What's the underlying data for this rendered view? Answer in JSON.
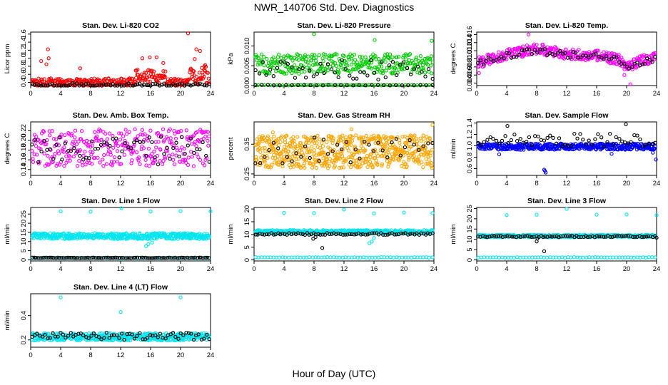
{
  "page": {
    "title": "NWR_140706  Std. Dev. Diagnostics",
    "x_axis_title": "Hour of Day (UTC)"
  },
  "colors": {
    "black": "#000000",
    "red": "#ff0000",
    "green": "#00cc00",
    "magenta": "#ff00ff",
    "orange": "#ffa500",
    "blue": "#0000ff",
    "cyan": "#00e5ee"
  },
  "chart_data": [
    {
      "type": "scatter",
      "title": "Stan. Dev. Li-820 CO2",
      "ylabel": "Licor ppm",
      "xlim": [
        0,
        24
      ],
      "ylim": [
        0.32,
        1.65
      ],
      "xticks": [
        "0",
        "4",
        "8",
        "12",
        "16",
        "20",
        "24"
      ],
      "yticks": [
        "0.4",
        "0.6",
        "0.8",
        "1.0",
        "1.2",
        "1.4",
        "1.6"
      ],
      "series": [
        {
          "color": "red",
          "pattern": "band",
          "n": 340,
          "base": 0.4,
          "spread": 0.1,
          "bumps": [
            [
              14,
              18,
              0.25
            ],
            [
              21,
              23.7,
              0.35
            ]
          ],
          "extra": [
            [
              2.1,
              0.85
            ],
            [
              2.4,
              1.0
            ],
            [
              2.3,
              1.22
            ],
            [
              1.4,
              0.93
            ],
            [
              6.6,
              0.75
            ],
            [
              14.9,
              1.0
            ],
            [
              15.9,
              1.02
            ],
            [
              16.8,
              1.02
            ],
            [
              17.7,
              0.88
            ],
            [
              21.0,
              1.62
            ],
            [
              21.9,
              0.98
            ],
            [
              22.1,
              1.22
            ],
            [
              22.6,
              1.18
            ],
            [
              23.2,
              0.8
            ]
          ]
        },
        {
          "color": "black",
          "pattern": "band",
          "n": 80,
          "base": 0.335,
          "spread": 0.05
        }
      ]
    },
    {
      "type": "scatter",
      "title": "Stan. Dev. Li-820 Pressure",
      "ylabel": "kPa",
      "xlim": [
        0,
        24
      ],
      "ylim": [
        0,
        0.0135
      ],
      "xticks": [
        "0",
        "4",
        "8",
        "12",
        "16",
        "20",
        "24"
      ],
      "yticks": [
        "0.000",
        "0.005",
        "0.010"
      ],
      "series": [
        {
          "color": "green",
          "pattern": "band",
          "n": 330,
          "base": 0.0055,
          "spread": 0.0025,
          "extra": [
            [
              8.0,
              0.013
            ],
            [
              16.1,
              0.0115
            ],
            [
              23.7,
              0.0113
            ]
          ]
        },
        {
          "color": "green",
          "pattern": "line",
          "n": 60,
          "value": 0.0001
        },
        {
          "color": "black",
          "pattern": "band",
          "n": 50,
          "base": 0.004,
          "spread": 0.0025
        },
        {
          "color": "black",
          "pattern": "line",
          "n": 30,
          "value": 0.0001
        }
      ]
    },
    {
      "type": "scatter",
      "title": "Stan. Dev. Li-820 Temp.",
      "ylabel": "degrees C",
      "xlim": [
        0,
        24
      ],
      "ylim": [
        0.0034,
        0.0166
      ],
      "xticks": [
        "0",
        "4",
        "8",
        "12",
        "16",
        "20",
        "24"
      ],
      "yticks": [
        "0.004",
        "0.006",
        "0.008",
        "0.010",
        "0.012",
        "0.014",
        "0.016"
      ],
      "series": [
        {
          "color": "magenta",
          "pattern": "curve",
          "n": 380,
          "spread": 0.0013,
          "curve": [
            [
              0,
              0.009
            ],
            [
              4,
              0.011
            ],
            [
              8,
              0.0125
            ],
            [
              12,
              0.0112
            ],
            [
              16,
              0.0108
            ],
            [
              19,
              0.0098
            ],
            [
              20,
              0.008
            ],
            [
              22,
              0.0095
            ],
            [
              24,
              0.0105
            ]
          ],
          "extra": [
            [
              0.3,
              0.0065
            ],
            [
              0.8,
              0.008
            ],
            [
              19.7,
              0.006
            ],
            [
              20.5,
              0.0037
            ],
            [
              6.9,
              0.016
            ]
          ]
        },
        {
          "color": "black",
          "pattern": "curve",
          "n": 70,
          "spread": 0.0008,
          "curve": [
            [
              0,
              0.009
            ],
            [
              4,
              0.0108
            ],
            [
              8,
              0.012
            ],
            [
              12,
              0.011
            ],
            [
              16,
              0.0105
            ],
            [
              19,
              0.0096
            ],
            [
              20,
              0.0082
            ],
            [
              22,
              0.009
            ],
            [
              24,
              0.01
            ]
          ]
        }
      ]
    },
    {
      "type": "scatter",
      "title": "Stan. Dev. Amb. Box Temp.",
      "ylabel": "degrees C",
      "xlim": [
        0,
        24
      ],
      "ylim": [
        0.128,
        0.238
      ],
      "xticks": [
        "0",
        "4",
        "8",
        "12",
        "16",
        "20",
        "24"
      ],
      "yticks": [
        "0.14",
        "0.16",
        "0.18",
        "0.20",
        "0.22"
      ],
      "series": [
        {
          "color": "magenta",
          "pattern": "band",
          "n": 330,
          "base": 0.185,
          "spread": 0.038
        },
        {
          "color": "black",
          "pattern": "band",
          "n": 60,
          "base": 0.178,
          "spread": 0.03
        }
      ]
    },
    {
      "type": "scatter",
      "title": "Stan. Dev. Gas Stream RH",
      "ylabel": "percent",
      "xlim": [
        0,
        24
      ],
      "ylim": [
        0.245,
        0.425
      ],
      "xticks": [
        "0",
        "4",
        "8",
        "12",
        "16",
        "20",
        "24"
      ],
      "yticks": [
        "0.25",
        "0.35"
      ],
      "series": [
        {
          "color": "orange",
          "pattern": "band",
          "n": 600,
          "base": 0.325,
          "spread": 0.055,
          "extra": [
            [
              23.8,
              0.415
            ],
            [
              2.5,
              0.39
            ],
            [
              13.0,
              0.4
            ]
          ]
        },
        {
          "color": "black",
          "pattern": "band",
          "n": 40,
          "base": 0.33,
          "spread": 0.045
        }
      ]
    },
    {
      "type": "scatter",
      "title": "Stan. Dev. Sample Flow",
      "ylabel": "ml/min",
      "xlim": [
        0,
        24
      ],
      "ylim": [
        0.48,
        1.42
      ],
      "xticks": [
        "0",
        "4",
        "8",
        "12",
        "16",
        "20",
        "24"
      ],
      "yticks": [
        "0.6",
        "0.8",
        "1.0",
        "1.2",
        "1.4"
      ],
      "series": [
        {
          "color": "blue",
          "pattern": "band",
          "n": 420,
          "base": 0.985,
          "spread": 0.055,
          "extra": [
            [
              9.0,
              0.58
            ],
            [
              9.2,
              0.53
            ],
            [
              9.1,
              0.56
            ],
            [
              3.0,
              0.85
            ],
            [
              18.0,
              0.86
            ],
            [
              23.9,
              0.76
            ],
            [
              23.5,
              0.88
            ]
          ]
        },
        {
          "color": "black",
          "pattern": "band",
          "n": 60,
          "base": 1.1,
          "spread": 0.12,
          "extra": [
            [
              4.1,
              1.35
            ],
            [
              19.9,
              1.38
            ]
          ]
        }
      ]
    },
    {
      "type": "scatter",
      "title": "Stan. Dev. Line 1 Flow",
      "ylabel": "ml/min",
      "xlim": [
        0,
        24
      ],
      "ylim": [
        -0.6,
        28.6
      ],
      "xticks": [
        "0",
        "4",
        "8",
        "12",
        "16",
        "20",
        "24"
      ],
      "yticks": [
        "0",
        "5",
        "10",
        "15",
        "20",
        "25"
      ],
      "series": [
        {
          "color": "cyan",
          "pattern": "band",
          "n": 420,
          "base": 13.0,
          "spread": 1.6,
          "extra": [
            [
              4.0,
              26.5
            ],
            [
              8.0,
              26.3
            ],
            [
              12.1,
              28.2
            ],
            [
              16.0,
              26.4
            ],
            [
              20.0,
              26.6
            ],
            [
              24.0,
              26.5
            ],
            [
              15.7,
              8.6
            ],
            [
              15.4,
              7.5
            ],
            [
              16.2,
              9.5
            ]
          ]
        },
        {
          "color": "cyan",
          "pattern": "line",
          "n": 60,
          "value": 1.0
        },
        {
          "color": "black",
          "pattern": "line",
          "n": 90,
          "value": 1.1
        }
      ]
    },
    {
      "type": "scatter",
      "title": "Stan. Dev. Line 2 Flow",
      "ylabel": "ml/min",
      "xlim": [
        0,
        24
      ],
      "ylim": [
        -0.4,
        20.6
      ],
      "xticks": [
        "0",
        "4",
        "8",
        "12",
        "16",
        "20",
        "24"
      ],
      "yticks": [
        "0",
        "5",
        "10",
        "15",
        "20"
      ],
      "series": [
        {
          "color": "cyan",
          "pattern": "band",
          "n": 420,
          "base": 11.0,
          "spread": 0.7,
          "extra": [
            [
              4.0,
              18.5
            ],
            [
              8.0,
              18.4
            ],
            [
              12.0,
              19.8
            ],
            [
              16.0,
              18.3
            ],
            [
              20.0,
              18.6
            ],
            [
              23.8,
              18.4
            ],
            [
              15.4,
              6.6
            ],
            [
              15.7,
              7.2
            ],
            [
              16.0,
              8.6
            ]
          ]
        },
        {
          "color": "cyan",
          "pattern": "line",
          "n": 60,
          "value": 1.0
        },
        {
          "color": "black",
          "pattern": "band",
          "n": 80,
          "base": 10.2,
          "spread": 0.35,
          "extra": [
            [
              7.9,
              8.3
            ],
            [
              8.2,
              9.0
            ],
            [
              9.1,
              4.7
            ]
          ]
        }
      ]
    },
    {
      "type": "scatter",
      "title": "Stan. Dev. Line 3 Flow",
      "ylabel": "ml/min",
      "xlim": [
        0,
        24
      ],
      "ylim": [
        -0.5,
        25.5
      ],
      "xticks": [
        "0",
        "4",
        "8",
        "12",
        "16",
        "20",
        "24"
      ],
      "yticks": [
        "0",
        "5",
        "10",
        "15",
        "20",
        "25"
      ],
      "series": [
        {
          "color": "cyan",
          "pattern": "band",
          "n": 420,
          "base": 11.6,
          "spread": 0.6,
          "extra": [
            [
              4.0,
              21.8
            ],
            [
              8.0,
              22.0
            ],
            [
              12.0,
              24.8
            ],
            [
              16.0,
              22.0
            ],
            [
              20.0,
              22.1
            ],
            [
              24.0,
              21.8
            ]
          ]
        },
        {
          "color": "cyan",
          "pattern": "line",
          "n": 60,
          "value": 1.2
        },
        {
          "color": "black",
          "pattern": "band",
          "n": 80,
          "base": 11.4,
          "spread": 0.35,
          "extra": [
            [
              8.0,
              9.0
            ],
            [
              8.1,
              10.4
            ],
            [
              9.0,
              4.2
            ],
            [
              24.0,
              10.8
            ]
          ]
        }
      ]
    },
    {
      "type": "scatter",
      "title": "Stan. Dev. Line 4 (LT) Flow",
      "ylabel": "ml/min",
      "xlim": [
        0,
        24
      ],
      "ylim": [
        0.14,
        0.58
      ],
      "xticks": [
        "0",
        "4",
        "8",
        "12",
        "16",
        "20",
        "24"
      ],
      "yticks": [
        "0.2",
        "0.4"
      ],
      "series": [
        {
          "color": "cyan",
          "pattern": "band",
          "n": 420,
          "base": 0.225,
          "spread": 0.03,
          "extra": [
            [
              4.0,
              0.55
            ],
            [
              12.0,
              0.43
            ],
            [
              20.0,
              0.55
            ]
          ]
        },
        {
          "color": "black",
          "pattern": "band",
          "n": 70,
          "base": 0.23,
          "spread": 0.03
        }
      ]
    }
  ]
}
